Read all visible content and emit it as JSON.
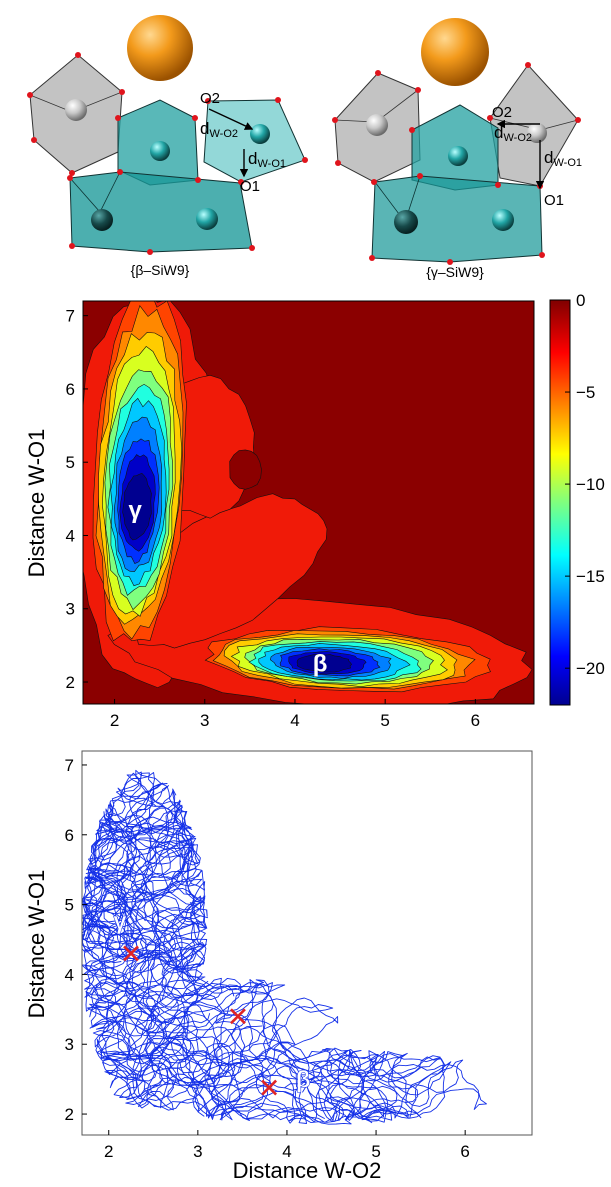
{
  "structures": [
    {
      "caption": "{β–SiW9}",
      "labels": {
        "o2": "O2",
        "o1": "O1",
        "d_o2_main": "d",
        "d_o2_sub": "W-O2",
        "d_o1_main": "d",
        "d_o1_sub": "W-O1"
      }
    },
    {
      "caption": "{γ–SiW9}",
      "labels": {
        "o2": "O2",
        "o1": "O1",
        "d_o2_main": "d",
        "d_o2_sub": "W-O2",
        "d_o1_main": "d",
        "d_o1_sub": "W-O1"
      }
    }
  ],
  "colors": {
    "sphere": "#f39a1b",
    "polyhedron_teal": "#1f9c9c",
    "polyhedron_gray": "#b5b5b5",
    "oxygen": "#e0141c",
    "trajectory": "#1430e8",
    "marker": "#e02424",
    "background": "#8b0000"
  },
  "chart_data": [
    {
      "type": "heatmap",
      "title": "",
      "xlabel": "",
      "ylabel": "Distance W-O1",
      "xlim": [
        1.65,
        6.65
      ],
      "ylim": [
        1.7,
        7.2
      ],
      "xticks": [
        2,
        3,
        4,
        5,
        6
      ],
      "yticks": [
        2,
        3,
        4,
        5,
        6,
        7
      ],
      "grid": false,
      "colorbar": {
        "ticks": [
          0,
          -5,
          -10,
          -15,
          -20
        ],
        "range": [
          -22,
          0
        ],
        "colormap": "jet"
      },
      "wells": [
        {
          "label": "γ",
          "x": 2.25,
          "y": 4.35,
          "depth": -22
        },
        {
          "label": "β",
          "x": 4.3,
          "y": 2.25,
          "depth": -22
        }
      ]
    },
    {
      "type": "line",
      "title": "",
      "xlabel": "Distance W-O2",
      "ylabel": "Distance W-O1",
      "xlim": [
        1.7,
        6.75
      ],
      "ylim": [
        1.7,
        7.2
      ],
      "xticks": [
        2,
        3,
        4,
        5,
        6
      ],
      "yticks": [
        2,
        3,
        4,
        5,
        6,
        7
      ],
      "grid": false,
      "region_labels": [
        {
          "label": "γ",
          "x": 2.05,
          "y": 4.65
        },
        {
          "label": "β",
          "x": 4.1,
          "y": 2.38
        }
      ],
      "markers": [
        {
          "x": 2.25,
          "y": 4.3
        },
        {
          "x": 3.45,
          "y": 3.4
        },
        {
          "x": 3.8,
          "y": 2.38
        }
      ]
    }
  ]
}
